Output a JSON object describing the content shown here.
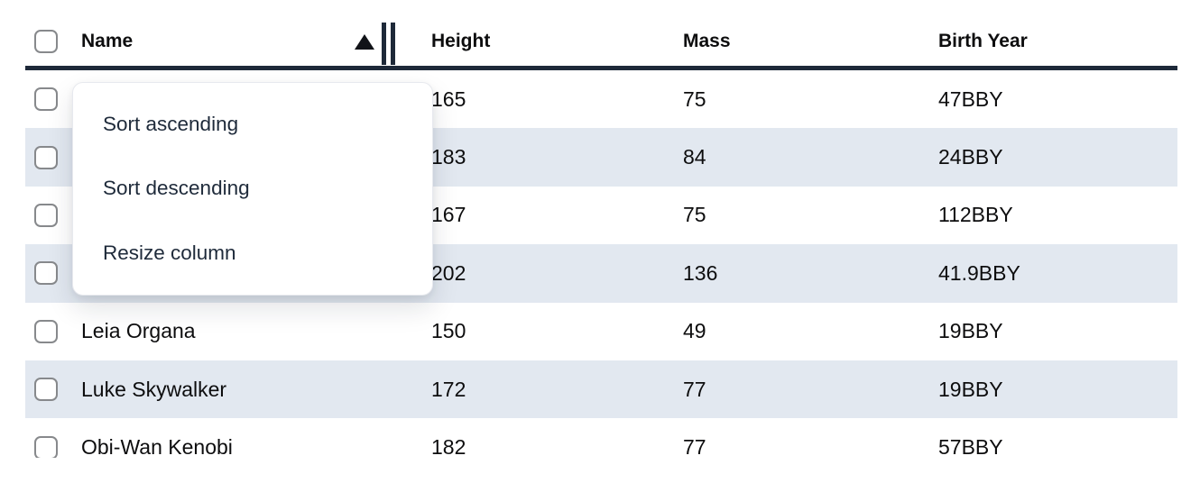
{
  "colors": {
    "stripe": "#e2e8f0",
    "header_border": "#1e2939",
    "text": "#0d0d0e",
    "menu_text": "#1e2a3a",
    "checkbox_border": "#87898c"
  },
  "table": {
    "columns": [
      {
        "label": "Name",
        "sort": "ascending"
      },
      {
        "label": "Height",
        "sort": null
      },
      {
        "label": "Mass",
        "sort": null
      },
      {
        "label": "Birth Year",
        "sort": null
      }
    ],
    "sort_indicator": "ascending",
    "rows": [
      {
        "name": "",
        "height": "165",
        "mass": "75",
        "birth_year": "47BBY",
        "striped": false
      },
      {
        "name": "",
        "height": "183",
        "mass": "84",
        "birth_year": "24BBY",
        "striped": true
      },
      {
        "name": "",
        "height": "167",
        "mass": "75",
        "birth_year": "112BBY",
        "striped": false
      },
      {
        "name": "",
        "height": "202",
        "mass": "136",
        "birth_year": "41.9BBY",
        "striped": true
      },
      {
        "name": "Leia Organa",
        "height": "150",
        "mass": "49",
        "birth_year": "19BBY",
        "striped": false
      },
      {
        "name": "Luke Skywalker",
        "height": "172",
        "mass": "77",
        "birth_year": "19BBY",
        "striped": true
      },
      {
        "name": "Obi-Wan Kenobi",
        "height": "182",
        "mass": "77",
        "birth_year": "57BBY",
        "striped": false
      }
    ]
  },
  "column_menu": {
    "items": [
      {
        "label": "Sort ascending"
      },
      {
        "label": "Sort descending"
      },
      {
        "label": "Resize column"
      }
    ]
  }
}
